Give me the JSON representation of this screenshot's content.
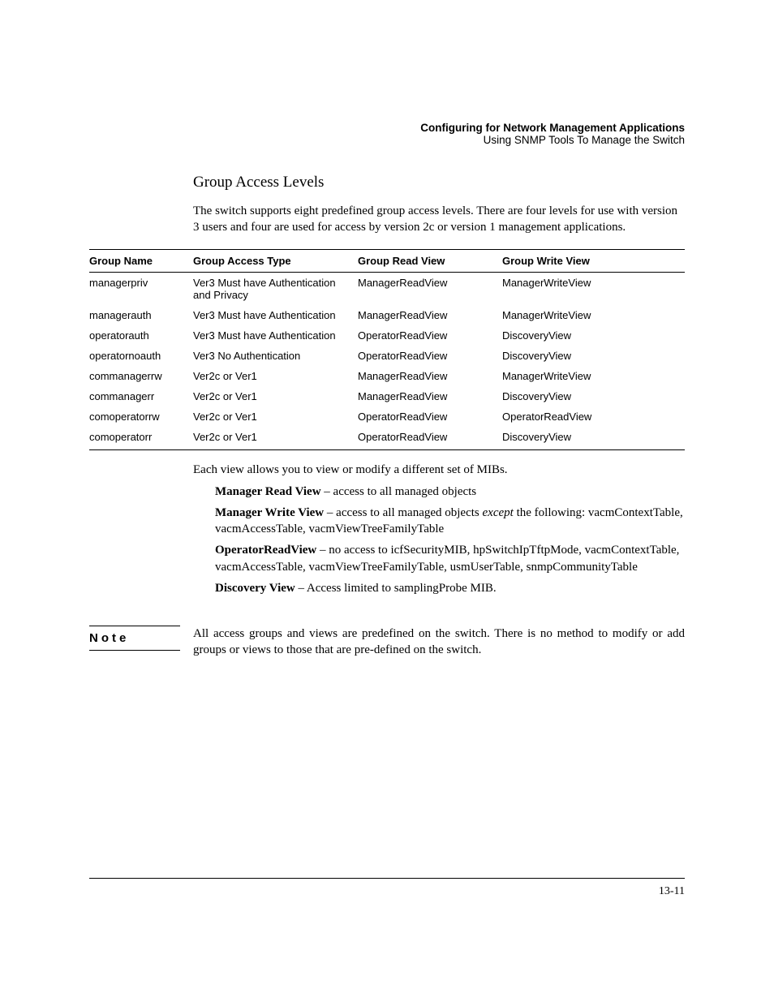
{
  "header": {
    "title": "Configuring for Network Management Applications",
    "subtitle": "Using SNMP Tools To Manage the Switch"
  },
  "section_heading": "Group Access Levels",
  "intro": "The switch supports eight predefined group access levels. There are four levels for use with version 3 users and four are used for access by version 2c or version 1 management applications.",
  "table": {
    "columns": [
      "Group Name",
      "Group Access Type",
      "Group Read View",
      "Group Write View"
    ],
    "rows": [
      [
        "managerpriv",
        "Ver3 Must have Authentication and Privacy",
        "ManagerReadView",
        "ManagerWriteView"
      ],
      [
        "managerauth",
        "Ver3 Must have Authentication",
        "ManagerReadView",
        "ManagerWriteView"
      ],
      [
        "operatorauth",
        "Ver3 Must have Authentication",
        "OperatorReadView",
        "DiscoveryView"
      ],
      [
        "operatornoauth",
        "Ver3 No Authentication",
        "OperatorReadView",
        "DiscoveryView"
      ],
      [
        "commanagerrw",
        "Ver2c or Ver1",
        "ManagerReadView",
        "ManagerWriteView"
      ],
      [
        "commanagerr",
        "Ver2c or Ver1",
        "ManagerReadView",
        "DiscoveryView"
      ],
      [
        "comoperatorrw",
        "Ver2c or Ver1",
        "OperatorReadView",
        "OperatorReadView"
      ],
      [
        "comoperatorr",
        "Ver2c or Ver1",
        "OperatorReadView",
        "DiscoveryView"
      ]
    ]
  },
  "views_intro": "Each view allows you to view or modify a different set of MIBs.",
  "views": [
    {
      "name": "Manager Read View",
      "desc_pre": " – access to all managed objects",
      "italic": "",
      "desc_post": ""
    },
    {
      "name": "Manager Write View",
      "desc_pre": " – access to all managed objects ",
      "italic": "except",
      "desc_post": " the follow­ing: vacmContextTable, vacmAccessTable, vacmViewTreeFamilyTable"
    },
    {
      "name": "OperatorReadView",
      "desc_pre": " – no access to icfSecurityMIB, hpSwitchIpTftp­Mode, vacmContextTable, vacmAccessTable, vacmViewTreeFami­lyTable, usmUserTable, snmpCommunityTable",
      "italic": "",
      "desc_post": ""
    },
    {
      "name": "Discovery View",
      "desc_pre": " – Access limited to samplingProbe MIB.",
      "italic": "",
      "desc_post": ""
    }
  ],
  "note": {
    "label": "Note",
    "body": "All access groups and views are predefined on the switch. There is no method to modify or add groups or views to those that are pre-defined on the switch."
  },
  "page_number": "13-11"
}
